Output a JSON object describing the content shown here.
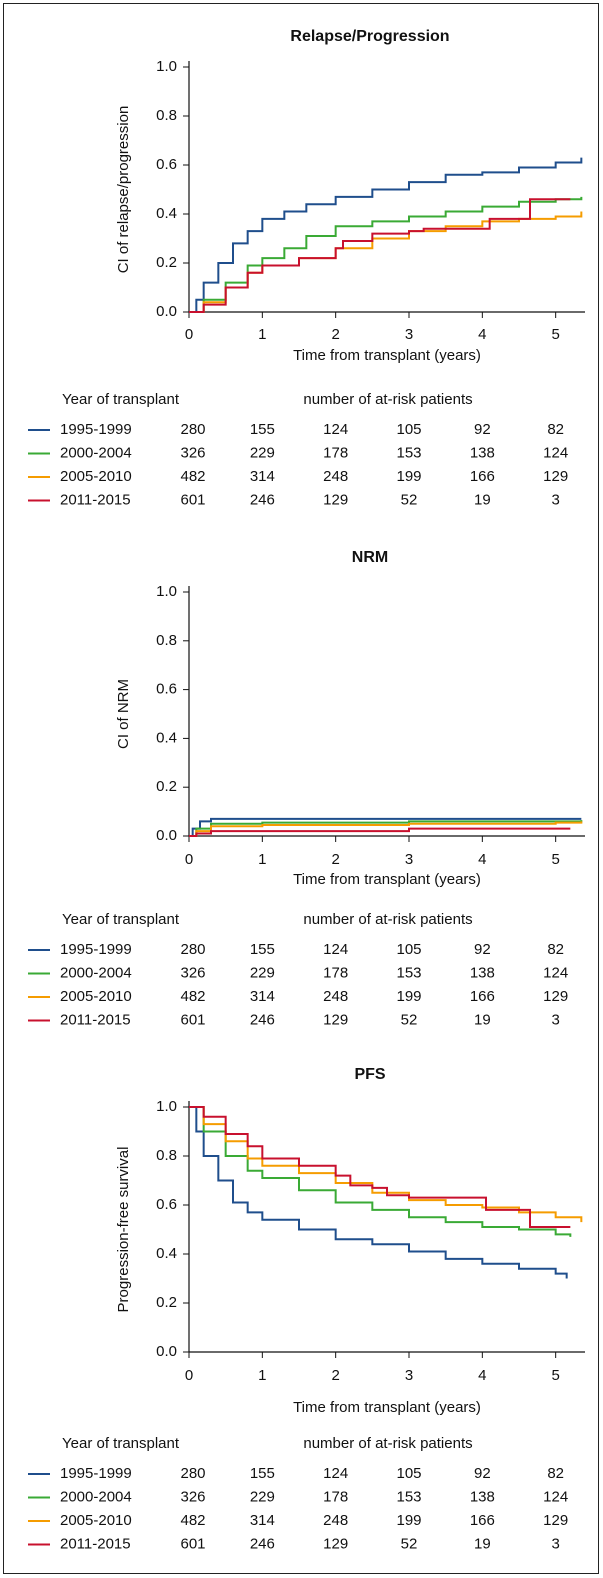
{
  "chart_data": [
    {
      "type": "line",
      "step": true,
      "title": "Relapse/Progression",
      "x_label": "Time from transplant (years)",
      "y_label": "CI of relapse/progression",
      "xlim": [
        0,
        5.4
      ],
      "ylim": [
        0,
        1
      ],
      "xticks": [
        0,
        1,
        2,
        3,
        4,
        5
      ],
      "yticks": [
        {
          "value": 0,
          "label": "0.0"
        },
        0.2,
        0.4,
        0.6,
        0.8,
        {
          "value": 1,
          "label": "1.0"
        }
      ],
      "risk_table": {
        "label": "Year of transplant",
        "title": "number of at-risk patients"
      },
      "series": [
        {
          "name": "1995-1999",
          "color": "#1f4e8c",
          "at_risk": [
            280,
            155,
            124,
            105,
            92,
            82
          ],
          "x": [
            0,
            0.1,
            0.2,
            0.4,
            0.6,
            0.8,
            1.0,
            1.3,
            1.6,
            2,
            2.5,
            3,
            3.5,
            4,
            4.5,
            5,
            5.35
          ],
          "values": [
            0,
            0.05,
            0.12,
            0.2,
            0.28,
            0.33,
            0.38,
            0.41,
            0.44,
            0.47,
            0.5,
            0.53,
            0.56,
            0.57,
            0.59,
            0.61,
            0.63
          ]
        },
        {
          "name": "2000-2004",
          "color": "#3aaa35",
          "at_risk": [
            326,
            229,
            178,
            153,
            138,
            124
          ],
          "x": [
            0,
            0.2,
            0.5,
            0.8,
            1,
            1.3,
            1.6,
            2,
            2.5,
            3,
            3.5,
            4,
            4.5,
            5,
            5.35
          ],
          "values": [
            0,
            0.05,
            0.12,
            0.19,
            0.22,
            0.26,
            0.31,
            0.35,
            0.37,
            0.39,
            0.41,
            0.43,
            0.45,
            0.46,
            0.47
          ]
        },
        {
          "name": "2005-2010",
          "color": "#f59c00",
          "at_risk": [
            482,
            314,
            248,
            199,
            166,
            129
          ],
          "x": [
            0,
            0.2,
            0.5,
            0.8,
            1,
            1.5,
            2,
            2.5,
            3,
            3.5,
            4,
            4.5,
            5,
            5.35
          ],
          "values": [
            0,
            0.04,
            0.1,
            0.16,
            0.19,
            0.22,
            0.26,
            0.3,
            0.33,
            0.35,
            0.37,
            0.38,
            0.39,
            0.41
          ]
        },
        {
          "name": "2011-2015",
          "color": "#c8102e",
          "at_risk": [
            601,
            246,
            129,
            52,
            19,
            3
          ],
          "x": [
            0,
            0.2,
            0.5,
            0.8,
            1,
            1.5,
            2,
            2.1,
            2.5,
            3,
            3.2,
            4.1,
            4.65,
            5.2
          ],
          "values": [
            0,
            0.03,
            0.1,
            0.16,
            0.19,
            0.22,
            0.26,
            0.29,
            0.32,
            0.33,
            0.34,
            0.38,
            0.46,
            0.46
          ]
        }
      ]
    },
    {
      "type": "line",
      "step": true,
      "title": "NRM",
      "x_label": "Time from transplant (years)",
      "y_label": "CI of NRM",
      "xlim": [
        0,
        5.4
      ],
      "ylim": [
        0,
        1
      ],
      "xticks": [
        0,
        1,
        2,
        3,
        4,
        5
      ],
      "yticks": [
        {
          "value": 0,
          "label": "0.0"
        },
        0.2,
        0.4,
        0.6,
        0.8,
        {
          "value": 1,
          "label": "1.0"
        }
      ],
      "risk_table": {
        "label": "Year of transplant",
        "title": "number of at-risk patients"
      },
      "series": [
        {
          "name": "1995-1999",
          "color": "#1f4e8c",
          "at_risk": [
            280,
            155,
            124,
            105,
            92,
            82
          ],
          "x": [
            0,
            0.05,
            0.15,
            0.3,
            5.35
          ],
          "values": [
            0,
            0.03,
            0.06,
            0.07,
            0.07
          ]
        },
        {
          "name": "2000-2004",
          "color": "#3aaa35",
          "at_risk": [
            326,
            229,
            178,
            153,
            138,
            124
          ],
          "x": [
            0,
            0.1,
            0.3,
            1,
            3,
            5.35
          ],
          "values": [
            0,
            0.03,
            0.05,
            0.055,
            0.06,
            0.065
          ]
        },
        {
          "name": "2005-2010",
          "color": "#f59c00",
          "at_risk": [
            482,
            314,
            248,
            199,
            166,
            129
          ],
          "x": [
            0,
            0.1,
            0.3,
            1,
            3,
            5,
            5.35
          ],
          "values": [
            0,
            0.02,
            0.04,
            0.045,
            0.05,
            0.055,
            0.06
          ]
        },
        {
          "name": "2011-2015",
          "color": "#c8102e",
          "at_risk": [
            601,
            246,
            129,
            52,
            19,
            3
          ],
          "x": [
            0,
            0.1,
            0.3,
            3,
            5.2
          ],
          "values": [
            0,
            0.01,
            0.02,
            0.03,
            0.03
          ]
        }
      ]
    },
    {
      "type": "line",
      "step": true,
      "title": "PFS",
      "x_label": "Time from transplant (years)",
      "y_label": "Progression-free survival",
      "xlim": [
        0,
        5.4
      ],
      "ylim": [
        0,
        1
      ],
      "xticks": [
        0,
        1,
        2,
        3,
        4,
        5
      ],
      "yticks": [
        {
          "value": 0,
          "label": "0.0"
        },
        0.2,
        0.4,
        0.6,
        0.8,
        {
          "value": 1,
          "label": "1.0"
        }
      ],
      "risk_table": {
        "label": "Year of transplant",
        "title": "number of at-risk patients"
      },
      "series": [
        {
          "name": "1995-1999",
          "color": "#1f4e8c",
          "at_risk": [
            280,
            155,
            124,
            105,
            92,
            82
          ],
          "x": [
            0,
            0.1,
            0.2,
            0.4,
            0.6,
            0.8,
            1,
            1.5,
            2,
            2.5,
            3,
            3.5,
            4,
            4.5,
            5,
            5.15
          ],
          "values": [
            1,
            0.9,
            0.8,
            0.7,
            0.61,
            0.57,
            0.54,
            0.5,
            0.46,
            0.44,
            0.41,
            0.38,
            0.36,
            0.34,
            0.32,
            0.3
          ]
        },
        {
          "name": "2000-2004",
          "color": "#3aaa35",
          "at_risk": [
            326,
            229,
            178,
            153,
            138,
            124
          ],
          "x": [
            0,
            0.2,
            0.5,
            0.8,
            1,
            1.5,
            2,
            2.5,
            3,
            3.5,
            4,
            4.5,
            5,
            5.2
          ],
          "values": [
            1,
            0.9,
            0.8,
            0.74,
            0.71,
            0.66,
            0.61,
            0.58,
            0.55,
            0.53,
            0.51,
            0.5,
            0.48,
            0.47
          ]
        },
        {
          "name": "2005-2010",
          "color": "#f59c00",
          "at_risk": [
            482,
            314,
            248,
            199,
            166,
            129
          ],
          "x": [
            0,
            0.2,
            0.5,
            0.8,
            1,
            1.5,
            2,
            2.5,
            3,
            3.5,
            4,
            4.5,
            5,
            5.35
          ],
          "values": [
            1,
            0.93,
            0.86,
            0.79,
            0.76,
            0.73,
            0.69,
            0.65,
            0.62,
            0.6,
            0.59,
            0.57,
            0.55,
            0.53
          ]
        },
        {
          "name": "2011-2015",
          "color": "#c8102e",
          "at_risk": [
            601,
            246,
            129,
            52,
            19,
            3
          ],
          "x": [
            0,
            0.2,
            0.5,
            0.8,
            1,
            1.5,
            2,
            2.2,
            2.5,
            2.7,
            3,
            4.05,
            4.65,
            5.2
          ],
          "values": [
            1,
            0.96,
            0.89,
            0.84,
            0.79,
            0.76,
            0.72,
            0.68,
            0.67,
            0.64,
            0.63,
            0.58,
            0.51,
            0.51
          ]
        }
      ]
    }
  ]
}
